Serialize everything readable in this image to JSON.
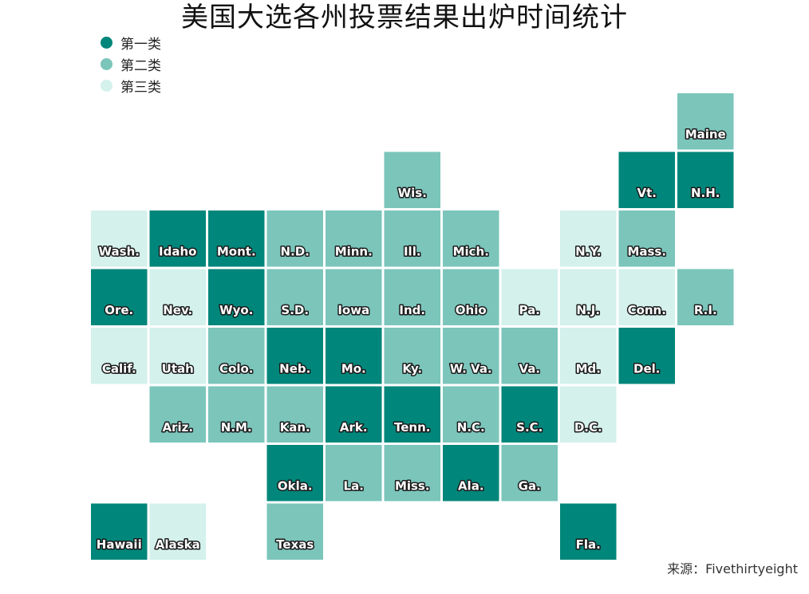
{
  "chart_data": {
    "type": "heatmap",
    "title": "美国大选各州投票结果出炉时间统计",
    "categories": [
      "第一类",
      "第二类",
      "第三类"
    ],
    "colors": {
      "第一类": "#00867a",
      "第二类": "#7bc5bb",
      "第三类": "#d4f1ec"
    },
    "legend_position": "top-left",
    "grid": [
      {
        "state": "Maine",
        "col": 10,
        "row": 0,
        "category": "第二类"
      },
      {
        "state": "Wis.",
        "col": 5,
        "row": 1,
        "category": "第二类"
      },
      {
        "state": "Vt.",
        "col": 9,
        "row": 1,
        "category": "第一类"
      },
      {
        "state": "N.H.",
        "col": 10,
        "row": 1,
        "category": "第一类"
      },
      {
        "state": "Wash.",
        "col": 0,
        "row": 2,
        "category": "第三类"
      },
      {
        "state": "Idaho",
        "col": 1,
        "row": 2,
        "category": "第一类"
      },
      {
        "state": "Mont.",
        "col": 2,
        "row": 2,
        "category": "第一类"
      },
      {
        "state": "N.D.",
        "col": 3,
        "row": 2,
        "category": "第二类"
      },
      {
        "state": "Minn.",
        "col": 4,
        "row": 2,
        "category": "第二类"
      },
      {
        "state": "Ill.",
        "col": 5,
        "row": 2,
        "category": "第二类"
      },
      {
        "state": "Mich.",
        "col": 6,
        "row": 2,
        "category": "第二类"
      },
      {
        "state": "N.Y.",
        "col": 8,
        "row": 2,
        "category": "第三类"
      },
      {
        "state": "Mass.",
        "col": 9,
        "row": 2,
        "category": "第二类"
      },
      {
        "state": "Ore.",
        "col": 0,
        "row": 3,
        "category": "第一类"
      },
      {
        "state": "Nev.",
        "col": 1,
        "row": 3,
        "category": "第三类"
      },
      {
        "state": "Wyo.",
        "col": 2,
        "row": 3,
        "category": "第一类"
      },
      {
        "state": "S.D.",
        "col": 3,
        "row": 3,
        "category": "第二类"
      },
      {
        "state": "Iowa",
        "col": 4,
        "row": 3,
        "category": "第二类"
      },
      {
        "state": "Ind.",
        "col": 5,
        "row": 3,
        "category": "第二类"
      },
      {
        "state": "Ohio",
        "col": 6,
        "row": 3,
        "category": "第二类"
      },
      {
        "state": "Pa.",
        "col": 7,
        "row": 3,
        "category": "第三类"
      },
      {
        "state": "N.J.",
        "col": 8,
        "row": 3,
        "category": "第三类"
      },
      {
        "state": "Conn.",
        "col": 9,
        "row": 3,
        "category": "第三类"
      },
      {
        "state": "R.I.",
        "col": 10,
        "row": 3,
        "category": "第二类"
      },
      {
        "state": "Calif.",
        "col": 0,
        "row": 4,
        "category": "第三类"
      },
      {
        "state": "Utah",
        "col": 1,
        "row": 4,
        "category": "第三类"
      },
      {
        "state": "Colo.",
        "col": 2,
        "row": 4,
        "category": "第二类"
      },
      {
        "state": "Neb.",
        "col": 3,
        "row": 4,
        "category": "第一类"
      },
      {
        "state": "Mo.",
        "col": 4,
        "row": 4,
        "category": "第一类"
      },
      {
        "state": "Ky.",
        "col": 5,
        "row": 4,
        "category": "第二类"
      },
      {
        "state": "W. Va.",
        "col": 6,
        "row": 4,
        "category": "第二类"
      },
      {
        "state": "Va.",
        "col": 7,
        "row": 4,
        "category": "第二类"
      },
      {
        "state": "Md.",
        "col": 8,
        "row": 4,
        "category": "第三类"
      },
      {
        "state": "Del.",
        "col": 9,
        "row": 4,
        "category": "第一类"
      },
      {
        "state": "Ariz.",
        "col": 1,
        "row": 5,
        "category": "第二类"
      },
      {
        "state": "N.M.",
        "col": 2,
        "row": 5,
        "category": "第二类"
      },
      {
        "state": "Kan.",
        "col": 3,
        "row": 5,
        "category": "第二类"
      },
      {
        "state": "Ark.",
        "col": 4,
        "row": 5,
        "category": "第一类"
      },
      {
        "state": "Tenn.",
        "col": 5,
        "row": 5,
        "category": "第一类"
      },
      {
        "state": "N.C.",
        "col": 6,
        "row": 5,
        "category": "第二类"
      },
      {
        "state": "S.C.",
        "col": 7,
        "row": 5,
        "category": "第一类"
      },
      {
        "state": "D.C.",
        "col": 8,
        "row": 5,
        "category": "第三类"
      },
      {
        "state": "Okla.",
        "col": 3,
        "row": 6,
        "category": "第一类"
      },
      {
        "state": "La.",
        "col": 4,
        "row": 6,
        "category": "第二类"
      },
      {
        "state": "Miss.",
        "col": 5,
        "row": 6,
        "category": "第二类"
      },
      {
        "state": "Ala.",
        "col": 6,
        "row": 6,
        "category": "第一类"
      },
      {
        "state": "Ga.",
        "col": 7,
        "row": 6,
        "category": "第二类"
      },
      {
        "state": "Hawaii",
        "col": 0,
        "row": 7,
        "category": "第一类"
      },
      {
        "state": "Alaska",
        "col": 1,
        "row": 7,
        "category": "第三类"
      },
      {
        "state": "Texas",
        "col": 3,
        "row": 7,
        "category": "第二类"
      },
      {
        "state": "Fla.",
        "col": 8,
        "row": 7,
        "category": "第一类"
      }
    ]
  },
  "source": "来源：Fivethirtyeight"
}
